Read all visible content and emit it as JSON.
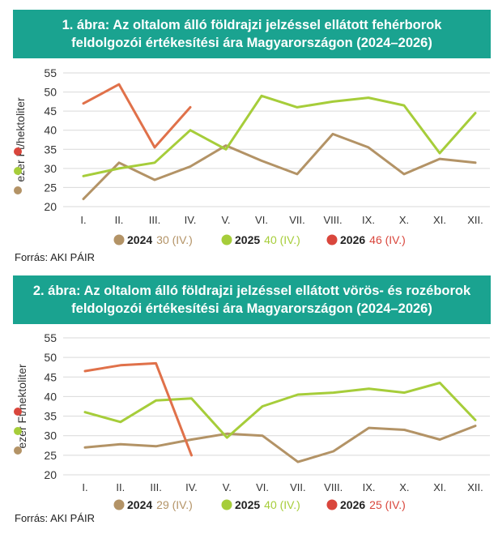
{
  "charts": [
    {
      "title_line1": "1. ábra: Az oltalom álló földrajzi jelzéssel ellátott fehérborok",
      "title_line2": "feldolgozói értékesítési ára Magyarországon (2024–2026)",
      "source": "Forrás: AKI PÁIR"
    },
    {
      "title_line1": "2. ábra: Az oltalom álló földrajzi jelzéssel ellátott vörös- és rozéborok",
      "title_line2": "feldolgozói értékesítési ára Magyarországon (2024–2026)",
      "source": "Forrás: AKI PÁIR"
    }
  ],
  "chart_data": [
    {
      "type": "line",
      "categories": [
        "I.",
        "II.",
        "III.",
        "IV.",
        "V.",
        "VI.",
        "VII.",
        "VIII.",
        "IX.",
        "X.",
        "XI.",
        "XII."
      ],
      "ylabel": "ezer Ft/hektoliter",
      "ylim": [
        20,
        55
      ],
      "yticks": [
        20,
        25,
        30,
        35,
        40,
        45,
        50,
        55
      ],
      "grid": "horizontal",
      "legend_placement": "bottom",
      "series": [
        {
          "name": "2024",
          "note": "30 (IV.)",
          "color": "#b39366",
          "values": [
            22,
            31.5,
            27,
            30.5,
            36,
            32,
            28.5,
            39,
            35.5,
            28.5,
            32.5,
            31.5
          ]
        },
        {
          "name": "2025",
          "note": "40 (IV.)",
          "color": "#a6cd3a",
          "values": [
            28,
            30,
            31.5,
            40,
            35,
            49,
            46,
            47.5,
            48.5,
            46.5,
            34,
            44.5
          ]
        },
        {
          "name": "2026",
          "note": "46 (IV.)",
          "color": "#e0714a",
          "legend_color": "#d9463c",
          "values": [
            47,
            52,
            35.5,
            46,
            null,
            null,
            null,
            null,
            null,
            null,
            null,
            null
          ]
        }
      ]
    },
    {
      "type": "line",
      "categories": [
        "I.",
        "II.",
        "III.",
        "IV.",
        "V.",
        "VI.",
        "VII.",
        "VIII.",
        "IX.",
        "X.",
        "XI.",
        "XII."
      ],
      "ylabel": "ezer Ft/hektoliter",
      "ylim": [
        20,
        55
      ],
      "yticks": [
        20,
        25,
        30,
        35,
        40,
        45,
        50,
        55
      ],
      "grid": "horizontal",
      "legend_placement": "bottom",
      "series": [
        {
          "name": "2024",
          "note": "29 (IV.)",
          "color": "#b39366",
          "values": [
            27,
            27.8,
            27.3,
            29,
            30.5,
            30,
            23.3,
            26,
            32,
            31.5,
            29,
            32.5
          ]
        },
        {
          "name": "2025",
          "note": "40 (IV.)",
          "color": "#a6cd3a",
          "values": [
            36,
            33.5,
            39,
            39.5,
            29.5,
            37.5,
            40.5,
            41,
            42,
            41,
            43.5,
            34
          ]
        },
        {
          "name": "2026",
          "note": "25 (IV.)",
          "color": "#e0714a",
          "legend_color": "#d9463c",
          "values": [
            46.5,
            48,
            48.5,
            25,
            null,
            null,
            null,
            null,
            null,
            null,
            null,
            null
          ]
        }
      ]
    }
  ]
}
